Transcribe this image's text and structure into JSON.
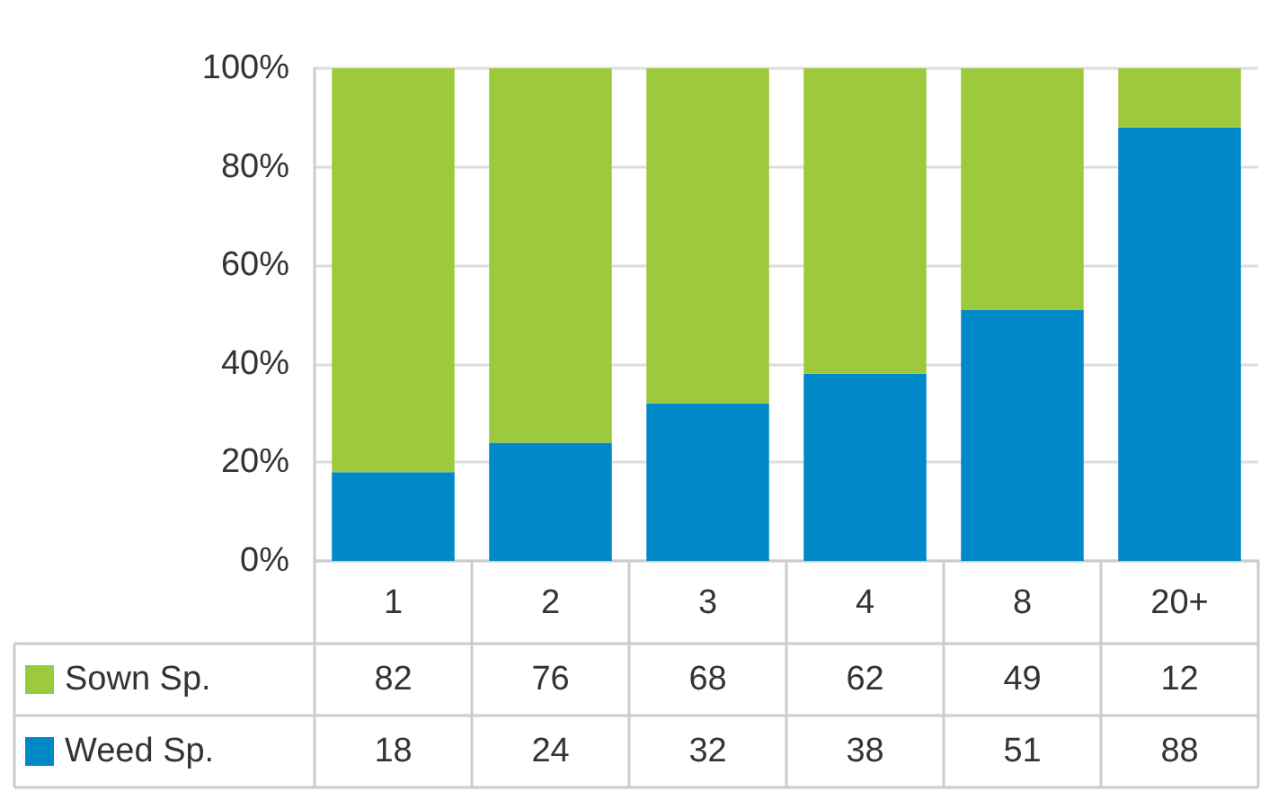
{
  "chart_data": {
    "type": "bar",
    "stacked": true,
    "categories": [
      "1",
      "2",
      "3",
      "4",
      "8",
      "20+"
    ],
    "series": [
      {
        "name": "Weed Sp.",
        "color": "#0089c9",
        "values": [
          18,
          24,
          32,
          38,
          51,
          88
        ]
      },
      {
        "name": "Sown Sp.",
        "color": "#9dc93c",
        "values": [
          82,
          76,
          68,
          62,
          49,
          12
        ]
      }
    ],
    "ylim": [
      0,
      100
    ],
    "yticks": [
      {
        "value": 0,
        "label": "0%"
      },
      {
        "value": 20,
        "label": "20%"
      },
      {
        "value": 40,
        "label": "40%"
      },
      {
        "value": 60,
        "label": "60%"
      },
      {
        "value": 80,
        "label": "80%"
      },
      {
        "value": 100,
        "label": "100%"
      }
    ],
    "grid": "y",
    "legend": "bottom",
    "data_labels": true
  }
}
